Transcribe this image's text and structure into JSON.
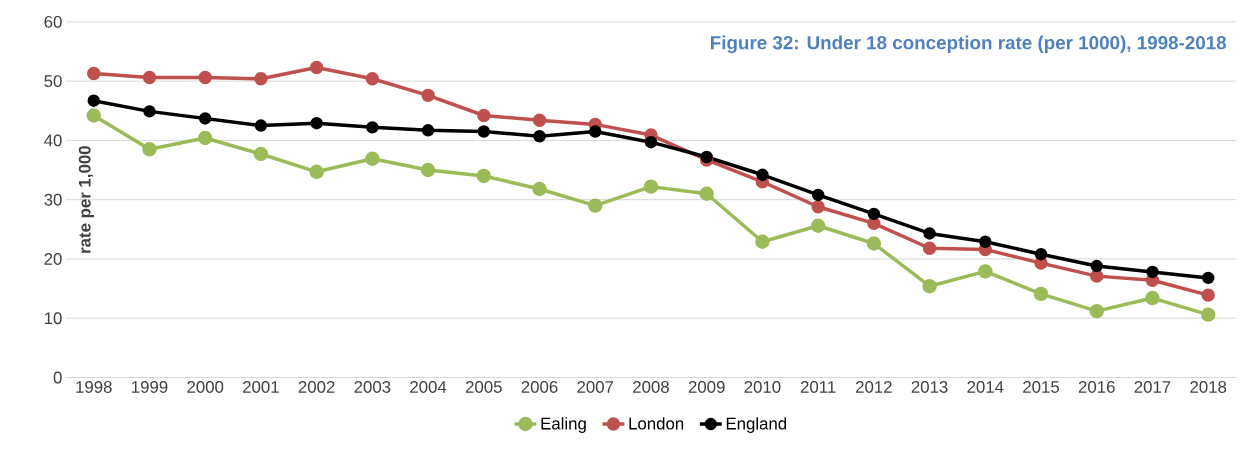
{
  "chart_data": {
    "type": "line",
    "title": "Figure 32: Under 18 conception rate (per 1000), 1998-2018",
    "ylabel": "rate per 1,000",
    "categories": [
      "1998",
      "1999",
      "2000",
      "2001",
      "2002",
      "2003",
      "2004",
      "2005",
      "2006",
      "2007",
      "2008",
      "2009",
      "2010",
      "2011",
      "2012",
      "2013",
      "2014",
      "2015",
      "2016",
      "2017",
      "2018"
    ],
    "series": [
      {
        "name": "Ealing",
        "color": "#9bbb59",
        "values": [
          44.2,
          38.5,
          40.4,
          37.7,
          34.7,
          36.9,
          35.0,
          34.0,
          31.8,
          29.0,
          32.2,
          31.0,
          22.9,
          25.6,
          22.6,
          15.4,
          17.9,
          14.1,
          11.2,
          13.4,
          10.6
        ]
      },
      {
        "name": "London",
        "color": "#c0504d",
        "values": [
          51.3,
          50.6,
          50.6,
          50.4,
          52.3,
          50.4,
          47.6,
          44.2,
          43.4,
          42.7,
          40.9,
          36.7,
          33.0,
          28.8,
          26.0,
          21.8,
          21.6,
          19.3,
          17.1,
          16.4,
          13.9
        ]
      },
      {
        "name": "England",
        "color": "#000000",
        "values": [
          46.7,
          44.9,
          43.7,
          42.5,
          42.9,
          42.2,
          41.7,
          41.5,
          40.7,
          41.5,
          39.7,
          37.2,
          34.2,
          30.8,
          27.6,
          24.3,
          22.9,
          20.8,
          18.8,
          17.8,
          16.8
        ]
      }
    ],
    "ylim": [
      0,
      60
    ],
    "yticks": [
      0,
      10,
      20,
      30,
      40,
      50,
      60
    ],
    "grid": "y",
    "legend": "bottom",
    "marker": "circle",
    "line_style": "solid"
  }
}
